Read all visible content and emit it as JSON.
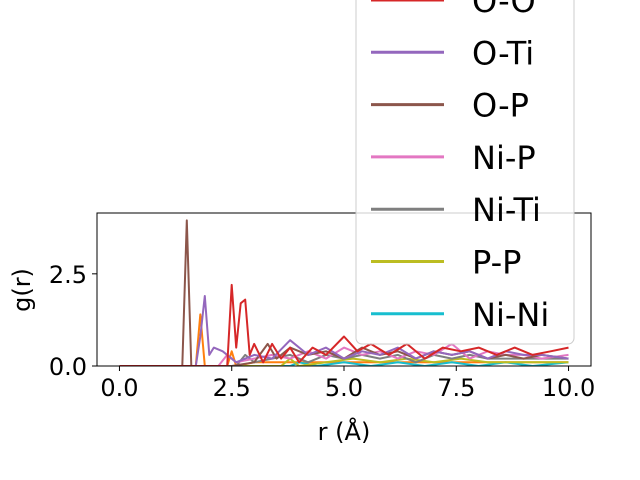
{
  "chart_data": {
    "type": "line",
    "title": "",
    "xlabel": "r (Å)",
    "ylabel": "g(r)",
    "xlim": [
      -0.5,
      10.5
    ],
    "ylim": [
      0,
      4.15
    ],
    "xticks": [
      0.0,
      2.5,
      5.0,
      7.5,
      10.0
    ],
    "xtick_labels": [
      "0.0",
      "2.5",
      "5.0",
      "7.5",
      "10.0"
    ],
    "yticks": [
      0.0,
      2.5
    ],
    "ytick_labels": [
      "0.0",
      "2.5"
    ],
    "grid": false,
    "legend_position": "upper-right",
    "series": [
      {
        "name": "O-O",
        "color": "#d62728",
        "x": [
          0.0,
          2.4,
          2.5,
          2.6,
          2.7,
          2.8,
          2.9,
          3.0,
          3.2,
          3.4,
          3.6,
          3.8,
          4.0,
          4.3,
          4.6,
          5.0,
          5.3,
          5.6,
          6.0,
          6.4,
          6.8,
          7.2,
          7.6,
          8.0,
          8.4,
          8.8,
          9.2,
          9.6,
          10.0
        ],
        "y": [
          0.0,
          0.0,
          2.2,
          0.5,
          1.7,
          1.8,
          0.3,
          0.6,
          0.1,
          0.6,
          0.2,
          0.5,
          0.1,
          0.5,
          0.3,
          0.8,
          0.4,
          0.6,
          0.3,
          0.6,
          0.2,
          0.5,
          0.4,
          0.5,
          0.3,
          0.5,
          0.3,
          0.4,
          0.5
        ]
      },
      {
        "name": "O-Ti",
        "color": "#9467bd",
        "x": [
          0.0,
          1.7,
          1.8,
          1.9,
          2.0,
          2.1,
          2.3,
          2.6,
          3.0,
          3.4,
          3.8,
          4.2,
          4.6,
          5.0,
          5.4,
          5.8,
          6.2,
          6.6,
          7.0,
          7.4,
          7.8,
          8.2,
          8.6,
          9.0,
          9.4,
          10.0
        ],
        "y": [
          0.0,
          0.0,
          0.8,
          1.9,
          0.3,
          0.5,
          0.4,
          0.1,
          0.3,
          0.2,
          0.7,
          0.3,
          0.5,
          0.2,
          0.4,
          0.3,
          0.5,
          0.2,
          0.4,
          0.3,
          0.4,
          0.2,
          0.4,
          0.3,
          0.3,
          0.2
        ]
      },
      {
        "name": "O-P",
        "color": "#8c564b",
        "x": [
          0.0,
          1.4,
          1.5,
          1.6,
          1.7,
          2.5,
          3.0,
          3.3,
          3.5,
          3.8,
          4.2,
          4.6,
          5.0,
          5.4,
          5.8,
          6.2,
          6.6,
          7.0,
          7.4,
          7.8,
          8.2,
          8.6,
          9.0,
          9.4,
          10.0
        ],
        "y": [
          0.0,
          0.0,
          3.95,
          0.0,
          0.0,
          0.0,
          0.1,
          0.6,
          0.2,
          0.5,
          0.3,
          0.4,
          0.2,
          0.5,
          0.3,
          0.4,
          0.2,
          0.4,
          0.3,
          0.4,
          0.2,
          0.3,
          0.2,
          0.3,
          0.2
        ]
      },
      {
        "name": "Ni-P",
        "color": "#e377c2",
        "x": [
          0.0,
          2.2,
          2.4,
          2.6,
          3.0,
          3.4,
          3.8,
          4.2,
          4.6,
          5.0,
          5.4,
          5.8,
          6.2,
          6.6,
          7.0,
          7.4,
          7.8,
          8.2,
          8.6,
          9.0,
          9.4,
          10.0
        ],
        "y": [
          0.0,
          0.0,
          0.3,
          0.1,
          0.2,
          0.3,
          0.2,
          0.4,
          0.2,
          0.5,
          0.3,
          0.4,
          0.2,
          0.4,
          0.3,
          0.6,
          0.2,
          0.4,
          0.3,
          0.3,
          0.2,
          0.3
        ]
      },
      {
        "name": "Ni-Ti",
        "color": "#7f7f7f",
        "x": [
          0.0,
          2.6,
          2.8,
          3.0,
          3.4,
          3.8,
          4.2,
          4.6,
          5.0,
          5.4,
          5.8,
          6.2,
          6.6,
          7.0,
          7.4,
          7.8,
          8.2,
          8.6,
          9.0,
          9.4,
          10.0
        ],
        "y": [
          0.0,
          0.0,
          0.3,
          0.1,
          0.2,
          0.3,
          0.1,
          0.3,
          0.2,
          0.3,
          0.2,
          0.3,
          0.1,
          0.3,
          0.2,
          0.3,
          0.2,
          0.2,
          0.2,
          0.2,
          0.2
        ]
      },
      {
        "name": "P-P",
        "color": "#bcbd22",
        "x": [
          0.0,
          3.6,
          3.8,
          4.0,
          4.6,
          5.2,
          5.8,
          6.4,
          7.0,
          7.6,
          8.2,
          8.8,
          9.4,
          10.0
        ],
        "y": [
          0.0,
          0.0,
          0.2,
          0.0,
          0.1,
          0.2,
          0.1,
          0.2,
          0.1,
          0.2,
          0.1,
          0.1,
          0.1,
          0.1
        ]
      },
      {
        "name": "Ni-Ni",
        "color": "#17becf",
        "x": [
          0.0,
          3.8,
          4.0,
          4.4,
          5.0,
          5.6,
          6.2,
          6.8,
          7.4,
          8.0,
          8.6,
          9.2,
          10.0
        ],
        "y": [
          0.0,
          0.0,
          0.1,
          0.0,
          0.1,
          0.0,
          0.1,
          0.0,
          0.1,
          0.0,
          0.1,
          0.0,
          0.1
        ]
      },
      {
        "name": "",
        "color": "#ff7f0e",
        "x": [
          0.0,
          1.7,
          1.8,
          1.9,
          2.0,
          2.4,
          2.5,
          2.6,
          3.0,
          4.0,
          5.0,
          6.0,
          7.0,
          8.0,
          9.0,
          10.0
        ],
        "y": [
          0.0,
          0.0,
          1.4,
          0.0,
          0.0,
          0.0,
          0.4,
          0.0,
          0.1,
          0.1,
          0.1,
          0.1,
          0.1,
          0.1,
          0.1,
          0.1
        ]
      }
    ],
    "legend_entries": [
      {
        "label": "O-O",
        "color": "#d62728"
      },
      {
        "label": "O-Ti",
        "color": "#9467bd"
      },
      {
        "label": "O-P",
        "color": "#8c564b"
      },
      {
        "label": "Ni-P",
        "color": "#e377c2"
      },
      {
        "label": "Ni-Ti",
        "color": "#7f7f7f"
      },
      {
        "label": "P-P",
        "color": "#bcbd22"
      },
      {
        "label": "Ni-Ni",
        "color": "#17becf"
      }
    ]
  }
}
